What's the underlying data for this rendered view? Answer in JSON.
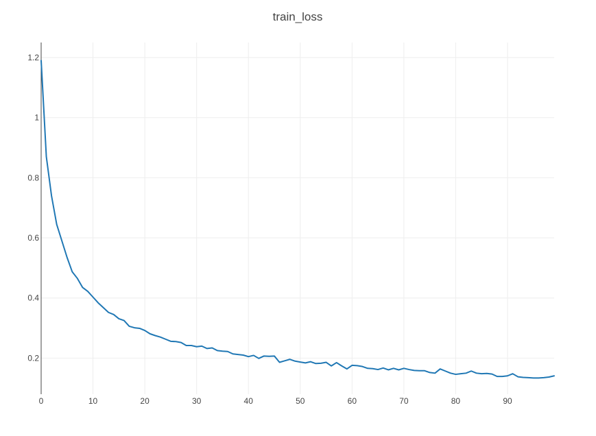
{
  "chart_data": {
    "type": "line",
    "title": "train_loss",
    "xlabel": "",
    "ylabel": "",
    "xlim": [
      0,
      99
    ],
    "ylim": [
      0.08,
      1.25
    ],
    "x_ticks": [
      0,
      10,
      20,
      30,
      40,
      50,
      60,
      70,
      80,
      90
    ],
    "x_tick_labels": [
      "0",
      "10",
      "20",
      "30",
      "40",
      "50",
      "60",
      "70",
      "80",
      "90"
    ],
    "y_ticks": [
      0.2,
      0.4,
      0.6,
      0.8,
      1.0,
      1.2
    ],
    "y_tick_labels": [
      "0.2",
      "0.4",
      "0.6",
      "0.8",
      "1",
      "1.2"
    ],
    "grid": true,
    "legend": "none",
    "series": [
      {
        "color": "#1f77b4",
        "x": [
          0,
          1,
          2,
          3,
          4,
          5,
          6,
          7,
          8,
          9,
          10,
          11,
          12,
          13,
          14,
          15,
          16,
          17,
          18,
          19,
          20,
          21,
          22,
          23,
          24,
          25,
          26,
          27,
          28,
          29,
          30,
          31,
          32,
          33,
          34,
          35,
          36,
          37,
          38,
          39,
          40,
          41,
          42,
          43,
          44,
          45,
          46,
          47,
          48,
          49,
          50,
          51,
          52,
          53,
          54,
          55,
          56,
          57,
          58,
          59,
          60,
          61,
          62,
          63,
          64,
          65,
          66,
          67,
          68,
          69,
          70,
          71,
          72,
          73,
          74,
          75,
          76,
          77,
          78,
          79,
          80,
          81,
          82,
          83,
          84,
          85,
          86,
          87,
          88,
          89,
          90,
          91,
          92,
          93,
          94,
          95,
          96,
          97,
          98,
          99
        ],
        "values": [
          1.19,
          0.87,
          0.74,
          0.645,
          0.59,
          0.535,
          0.487,
          0.465,
          0.435,
          0.422,
          0.403,
          0.384,
          0.368,
          0.352,
          0.345,
          0.331,
          0.325,
          0.306,
          0.301,
          0.299,
          0.292,
          0.281,
          0.275,
          0.27,
          0.263,
          0.256,
          0.255,
          0.252,
          0.242,
          0.242,
          0.238,
          0.24,
          0.232,
          0.234,
          0.225,
          0.223,
          0.222,
          0.214,
          0.212,
          0.21,
          0.205,
          0.209,
          0.199,
          0.207,
          0.206,
          0.207,
          0.186,
          0.191,
          0.196,
          0.19,
          0.187,
          0.184,
          0.188,
          0.182,
          0.183,
          0.186,
          0.174,
          0.185,
          0.174,
          0.164,
          0.176,
          0.175,
          0.172,
          0.166,
          0.165,
          0.162,
          0.167,
          0.161,
          0.166,
          0.161,
          0.166,
          0.162,
          0.159,
          0.158,
          0.158,
          0.152,
          0.15,
          0.164,
          0.157,
          0.15,
          0.146,
          0.148,
          0.15,
          0.157,
          0.15,
          0.148,
          0.149,
          0.147,
          0.139,
          0.139,
          0.141,
          0.148,
          0.138,
          0.136,
          0.135,
          0.134,
          0.134,
          0.135,
          0.137,
          0.141
        ],
        "line_width": 2
      }
    ]
  }
}
